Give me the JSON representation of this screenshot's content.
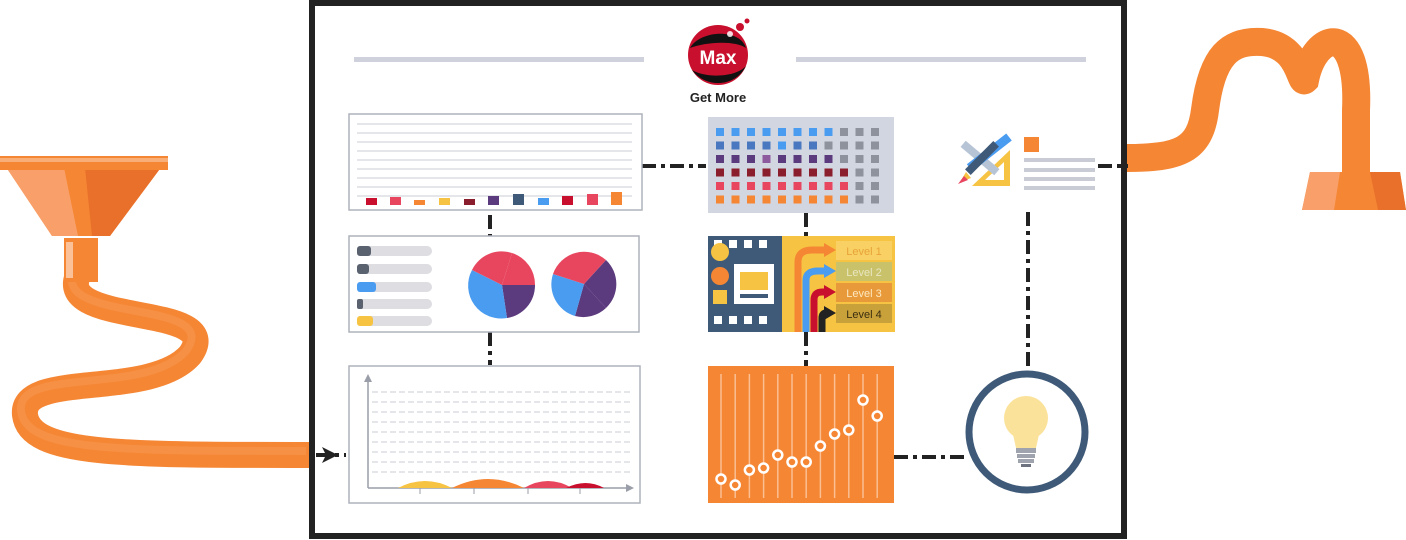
{
  "logo": {
    "text": "Max",
    "tagline": "Get More"
  },
  "levels": [
    "Level 1",
    "Level 2",
    "Level 3",
    "Level 4"
  ],
  "colors": {
    "orange": "#F58634",
    "orange_dark": "#E8702A",
    "frame": "#222222",
    "navy": "#3F5A78",
    "yellow": "#F6C343",
    "red": "#E8465F",
    "purple": "#5B3A7E",
    "blue": "#4A9CF0",
    "panel_gray": "#D2D6E0"
  }
}
